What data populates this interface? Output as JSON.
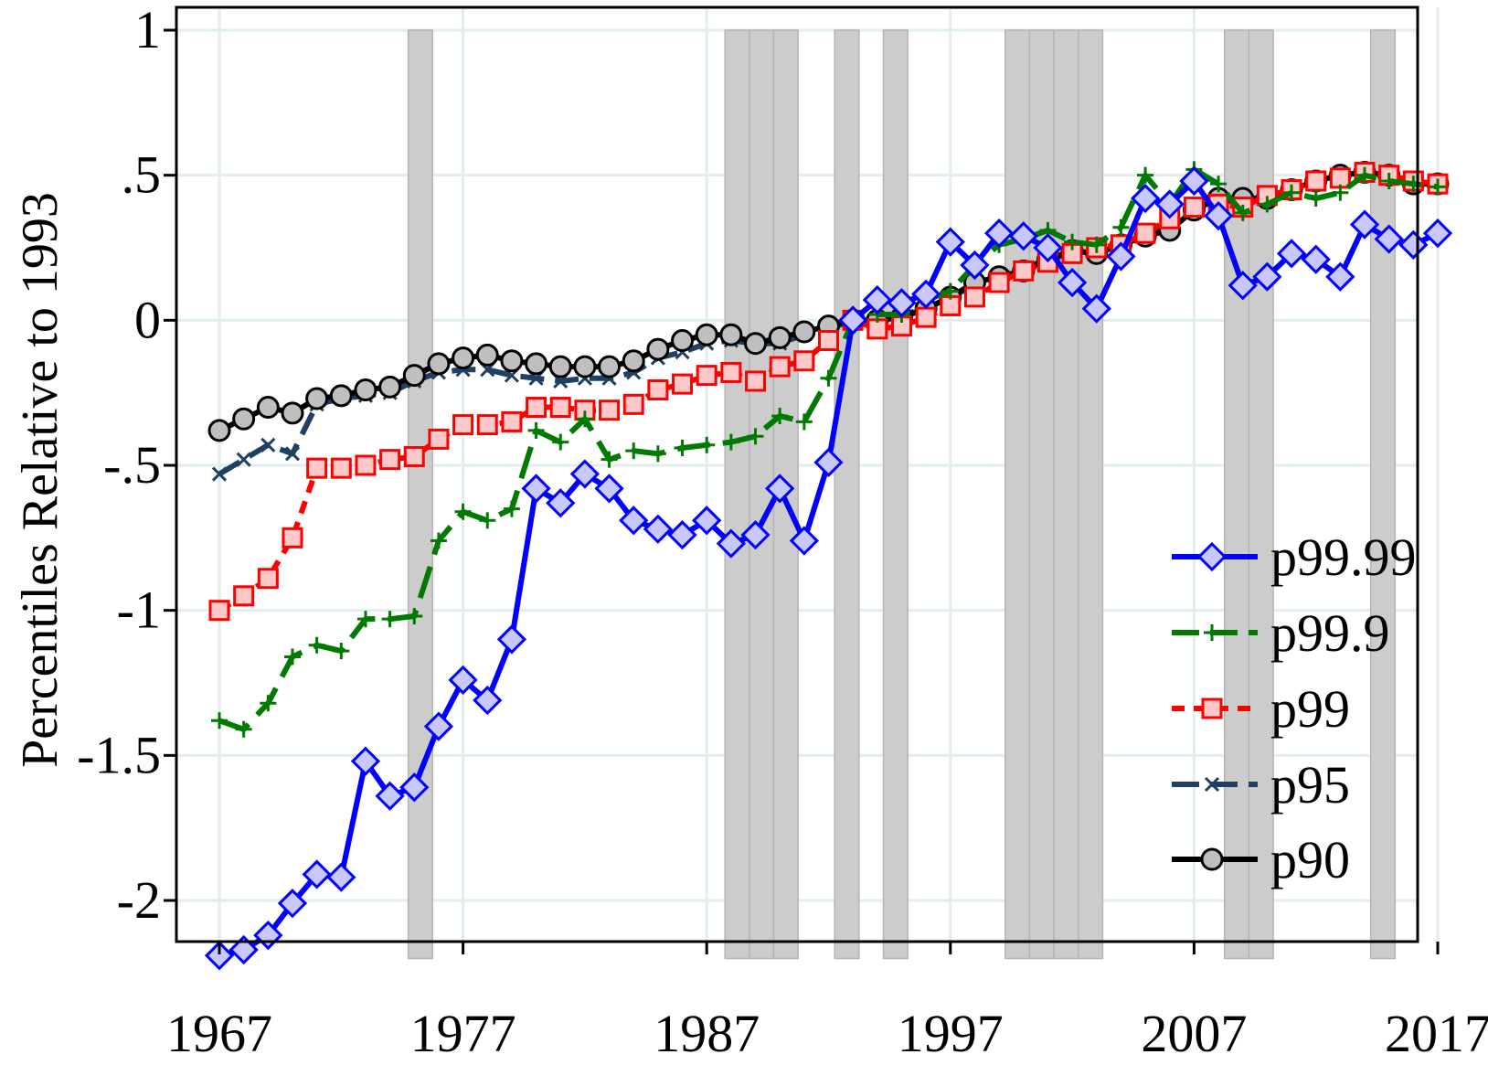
{
  "chart_data": {
    "type": "line",
    "title": "",
    "xlabel": "",
    "ylabel": "Percentiles Relative to 1993",
    "xlim": [
      1967,
      2017
    ],
    "ylim": [
      -2.2,
      1
    ],
    "xticks": [
      1967,
      1977,
      1987,
      1997,
      2007,
      2017
    ],
    "xtick_labels": [
      "1967",
      "1977",
      "1987",
      "1997",
      "2007",
      "2017"
    ],
    "yticks": [
      1,
      0.5,
      0,
      -0.5,
      -1,
      -1.5,
      -2
    ],
    "ytick_labels": [
      "1",
      ".5",
      "0",
      "-.5",
      "-1",
      "-1.5",
      "-2"
    ],
    "grid": true,
    "legend_position": "bottom-right",
    "recession_shading": [
      [
        1974.75,
        1975.75
      ],
      [
        1987.75,
        1988.75
      ],
      [
        1988.75,
        1989.75
      ],
      [
        1989.75,
        1990.75
      ],
      [
        1992.25,
        1993.25
      ],
      [
        1994.25,
        1995.25
      ],
      [
        1999.25,
        2000.25
      ],
      [
        2000.25,
        2001.25
      ],
      [
        2001.25,
        2002.25
      ],
      [
        2002.25,
        2003.25
      ],
      [
        2008.25,
        2009.25
      ],
      [
        2009.25,
        2010.25
      ],
      [
        2014.25,
        2015.25
      ]
    ],
    "colors": {
      "p99_99": "#0000ff",
      "p99_99_fill": "#c8c8ff",
      "p99_9": "#007a00",
      "p99": "#ff0000",
      "p99_fill": "#ffc8c8",
      "p95": "#1f3f63",
      "p90": "#000000",
      "p90_fill": "#bfbfbf",
      "shading": "#cccccc",
      "grid": "#e1eeee"
    },
    "series": [
      {
        "name": "p99.99",
        "key": "p99_99",
        "x": [
          1967,
          1968,
          1969,
          1970,
          1971,
          1972,
          1973,
          1974,
          1975,
          1976,
          1977,
          1978,
          1979,
          1980,
          1981,
          1982,
          1983,
          1984,
          1985,
          1986,
          1987,
          1988,
          1989,
          1990,
          1991,
          1992,
          1993,
          1994,
          1995,
          1996,
          1997,
          1998,
          1999,
          2000,
          2001,
          2002,
          2003,
          2004,
          2005,
          2006,
          2007,
          2008,
          2009,
          2010,
          2011,
          2012,
          2013,
          2014,
          2015,
          2016,
          2017
        ],
        "values": [
          -2.19,
          -2.17,
          -2.12,
          -2.01,
          -1.91,
          -1.92,
          -1.52,
          -1.64,
          -1.61,
          -1.4,
          -1.24,
          -1.31,
          -1.1,
          -0.58,
          -0.63,
          -0.53,
          -0.58,
          -0.69,
          -0.72,
          -0.74,
          -0.69,
          -0.77,
          -0.74,
          -0.58,
          -0.76,
          -0.49,
          0.0,
          0.07,
          0.06,
          0.09,
          0.27,
          0.19,
          0.3,
          0.29,
          0.25,
          0.13,
          0.04,
          0.22,
          0.42,
          0.4,
          0.48,
          0.36,
          0.12,
          0.15,
          0.23,
          0.21,
          0.15,
          0.33,
          0.28,
          0.26,
          0.3
        ]
      },
      {
        "name": "p99.9",
        "key": "p99_9",
        "x": [
          1967,
          1968,
          1969,
          1970,
          1971,
          1972,
          1973,
          1974,
          1975,
          1976,
          1977,
          1978,
          1979,
          1980,
          1981,
          1982,
          1983,
          1984,
          1985,
          1986,
          1987,
          1988,
          1989,
          1990,
          1991,
          1992,
          1993,
          1994,
          1995,
          1996,
          1997,
          1998,
          1999,
          2000,
          2001,
          2002,
          2003,
          2004,
          2005,
          2006,
          2007,
          2008,
          2009,
          2010,
          2011,
          2012,
          2013,
          2014,
          2015,
          2016,
          2017
        ],
        "values": [
          -1.38,
          -1.41,
          -1.32,
          -1.16,
          -1.12,
          -1.14,
          -1.03,
          -1.03,
          -1.02,
          -0.76,
          -0.66,
          -0.69,
          -0.65,
          -0.38,
          -0.42,
          -0.34,
          -0.48,
          -0.45,
          -0.46,
          -0.44,
          -0.43,
          -0.42,
          -0.4,
          -0.33,
          -0.35,
          -0.2,
          0.0,
          0.02,
          0.02,
          0.07,
          0.1,
          0.19,
          0.26,
          0.28,
          0.31,
          0.27,
          0.26,
          0.32,
          0.5,
          0.4,
          0.52,
          0.47,
          0.37,
          0.4,
          0.44,
          0.42,
          0.44,
          0.5,
          0.48,
          0.47,
          0.46
        ]
      },
      {
        "name": "p99",
        "key": "p99",
        "x": [
          1967,
          1968,
          1969,
          1970,
          1971,
          1972,
          1973,
          1974,
          1975,
          1976,
          1977,
          1978,
          1979,
          1980,
          1981,
          1982,
          1983,
          1984,
          1985,
          1986,
          1987,
          1988,
          1989,
          1990,
          1991,
          1992,
          1993,
          1994,
          1995,
          1996,
          1997,
          1998,
          1999,
          2000,
          2001,
          2002,
          2003,
          2004,
          2005,
          2006,
          2007,
          2008,
          2009,
          2010,
          2011,
          2012,
          2013,
          2014,
          2015,
          2016,
          2017
        ],
        "values": [
          -1.0,
          -0.95,
          -0.89,
          -0.75,
          -0.51,
          -0.51,
          -0.5,
          -0.48,
          -0.47,
          -0.41,
          -0.36,
          -0.36,
          -0.35,
          -0.3,
          -0.3,
          -0.31,
          -0.31,
          -0.29,
          -0.24,
          -0.22,
          -0.19,
          -0.18,
          -0.21,
          -0.16,
          -0.14,
          -0.07,
          0.0,
          -0.03,
          -0.02,
          0.01,
          0.05,
          0.08,
          0.13,
          0.17,
          0.2,
          0.23,
          0.25,
          0.26,
          0.3,
          0.35,
          0.39,
          0.4,
          0.39,
          0.43,
          0.45,
          0.48,
          0.49,
          0.51,
          0.5,
          0.48,
          0.47
        ]
      },
      {
        "name": "p95",
        "key": "p95",
        "x": [
          1967,
          1968,
          1969,
          1970,
          1971,
          1972,
          1973,
          1974,
          1975,
          1976,
          1977,
          1978,
          1979,
          1980,
          1981,
          1982,
          1983,
          1984,
          1985,
          1986,
          1987,
          1988,
          1989,
          1990,
          1991,
          1992,
          1993,
          1994,
          1995,
          1996,
          1997,
          1998,
          1999,
          2000,
          2001,
          2002,
          2003,
          2004,
          2005,
          2006,
          2007,
          2008,
          2009,
          2010,
          2011,
          2012,
          2013,
          2014,
          2015,
          2016,
          2017
        ],
        "values": [
          -0.53,
          -0.48,
          -0.43,
          -0.46,
          -0.29,
          -0.27,
          -0.26,
          -0.25,
          -0.21,
          -0.18,
          -0.17,
          -0.17,
          -0.19,
          -0.2,
          -0.21,
          -0.2,
          -0.2,
          -0.18,
          -0.13,
          -0.11,
          -0.08,
          -0.07,
          -0.08,
          -0.08,
          -0.05,
          -0.03,
          0.0,
          0.0,
          0.02,
          0.04,
          0.08,
          0.12,
          0.15,
          0.18,
          0.21,
          0.23,
          0.23,
          0.26,
          0.29,
          0.32,
          0.38,
          0.41,
          0.41,
          0.43,
          0.45,
          0.48,
          0.5,
          0.51,
          0.5,
          0.47,
          0.47
        ]
      },
      {
        "name": "p90",
        "key": "p90",
        "x": [
          1967,
          1968,
          1969,
          1970,
          1971,
          1972,
          1973,
          1974,
          1975,
          1976,
          1977,
          1978,
          1979,
          1980,
          1981,
          1982,
          1983,
          1984,
          1985,
          1986,
          1987,
          1988,
          1989,
          1990,
          1991,
          1992,
          1993,
          1994,
          1995,
          1996,
          1997,
          1998,
          1999,
          2000,
          2001,
          2002,
          2003,
          2004,
          2005,
          2006,
          2007,
          2008,
          2009,
          2010,
          2011,
          2012,
          2013,
          2014,
          2015,
          2016,
          2017
        ],
        "values": [
          -0.38,
          -0.34,
          -0.3,
          -0.32,
          -0.27,
          -0.26,
          -0.24,
          -0.23,
          -0.19,
          -0.15,
          -0.13,
          -0.12,
          -0.14,
          -0.15,
          -0.16,
          -0.16,
          -0.16,
          -0.14,
          -0.1,
          -0.07,
          -0.05,
          -0.05,
          -0.08,
          -0.06,
          -0.04,
          -0.02,
          0.0,
          0.0,
          0.01,
          0.04,
          0.08,
          0.13,
          0.15,
          0.17,
          0.21,
          0.24,
          0.23,
          0.26,
          0.29,
          0.31,
          0.38,
          0.42,
          0.42,
          0.42,
          0.45,
          0.48,
          0.5,
          0.51,
          0.5,
          0.47,
          0.47
        ]
      }
    ],
    "legend_order": [
      "p99_99",
      "p99_9",
      "p99",
      "p95",
      "p90"
    ]
  }
}
